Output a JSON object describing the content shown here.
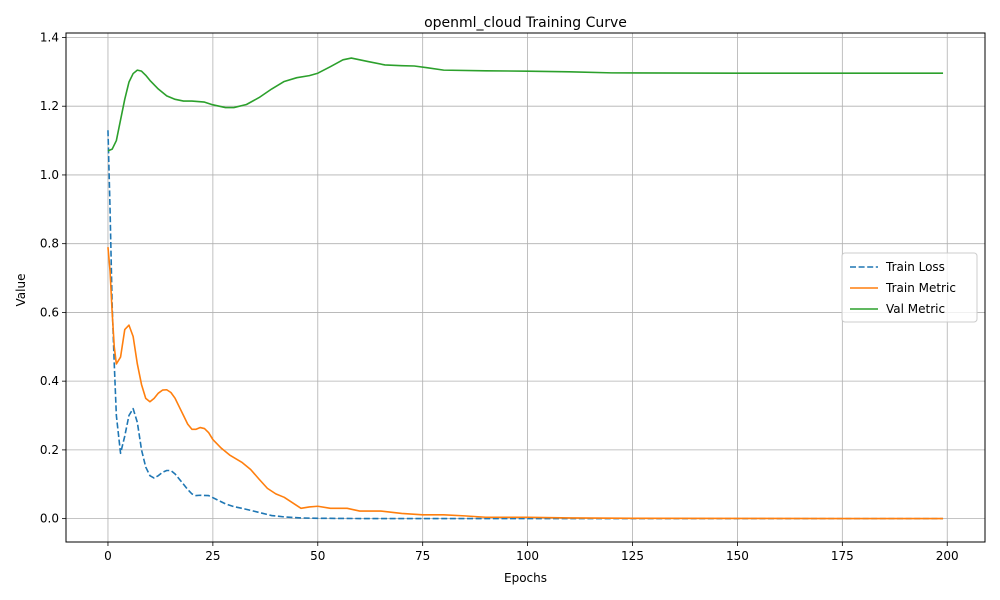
{
  "chart_data": {
    "type": "line",
    "title": "openml_cloud Training Curve",
    "xlabel": "Epochs",
    "ylabel": "Value",
    "xlim": [
      -10,
      209
    ],
    "ylim": [
      -0.068,
      1.413
    ],
    "xticks": [
      0,
      25,
      50,
      75,
      100,
      125,
      150,
      175,
      200
    ],
    "yticks": [
      0.0,
      0.2,
      0.4,
      0.6,
      0.8,
      1.0,
      1.2,
      1.4
    ],
    "xtick_labels": [
      "0",
      "25",
      "50",
      "75",
      "100",
      "125",
      "150",
      "175",
      "200"
    ],
    "ytick_labels": [
      "0.0",
      "0.2",
      "0.4",
      "0.6",
      "0.8",
      "1.0",
      "1.2",
      "1.4"
    ],
    "grid": true,
    "legend_position": "center-right",
    "series": [
      {
        "name": "Train Loss",
        "color": "#1f77b4",
        "dash": "dashed",
        "points": [
          [
            0,
            1.13
          ],
          [
            0.5,
            0.9
          ],
          [
            1,
            0.62
          ],
          [
            1.5,
            0.45
          ],
          [
            2,
            0.3
          ],
          [
            3,
            0.19
          ],
          [
            4,
            0.24
          ],
          [
            5,
            0.3
          ],
          [
            6,
            0.32
          ],
          [
            7,
            0.28
          ],
          [
            8,
            0.2
          ],
          [
            9,
            0.15
          ],
          [
            10,
            0.125
          ],
          [
            11,
            0.118
          ],
          [
            12,
            0.125
          ],
          [
            13,
            0.135
          ],
          [
            14,
            0.14
          ],
          [
            15,
            0.14
          ],
          [
            16,
            0.13
          ],
          [
            17,
            0.115
          ],
          [
            18,
            0.1
          ],
          [
            19,
            0.085
          ],
          [
            20,
            0.072
          ],
          [
            21,
            0.067
          ],
          [
            22,
            0.068
          ],
          [
            24,
            0.067
          ],
          [
            26,
            0.055
          ],
          [
            28,
            0.043
          ],
          [
            30,
            0.035
          ],
          [
            33,
            0.027
          ],
          [
            36,
            0.018
          ],
          [
            39,
            0.009
          ],
          [
            42,
            0.005
          ],
          [
            46,
            0.002
          ],
          [
            50,
            0.001
          ],
          [
            60,
            0.0003
          ],
          [
            80,
            0.0001
          ],
          [
            100,
            0.0
          ],
          [
            150,
            0.0
          ],
          [
            199,
            0.0
          ]
        ]
      },
      {
        "name": "Train Metric",
        "color": "#ff7f0e",
        "dash": "solid",
        "points": [
          [
            0,
            0.79
          ],
          [
            0.5,
            0.72
          ],
          [
            1,
            0.6
          ],
          [
            1.5,
            0.5
          ],
          [
            2,
            0.45
          ],
          [
            3,
            0.47
          ],
          [
            4,
            0.55
          ],
          [
            5,
            0.563
          ],
          [
            6,
            0.53
          ],
          [
            7,
            0.45
          ],
          [
            8,
            0.39
          ],
          [
            9,
            0.35
          ],
          [
            10,
            0.34
          ],
          [
            11,
            0.35
          ],
          [
            12,
            0.365
          ],
          [
            13,
            0.374
          ],
          [
            14,
            0.375
          ],
          [
            15,
            0.367
          ],
          [
            16,
            0.35
          ],
          [
            17,
            0.325
          ],
          [
            18,
            0.3
          ],
          [
            19,
            0.275
          ],
          [
            20,
            0.26
          ],
          [
            21,
            0.26
          ],
          [
            22,
            0.265
          ],
          [
            23,
            0.262
          ],
          [
            24,
            0.25
          ],
          [
            25,
            0.23
          ],
          [
            27,
            0.205
          ],
          [
            29,
            0.185
          ],
          [
            32,
            0.163
          ],
          [
            34,
            0.143
          ],
          [
            36,
            0.115
          ],
          [
            38,
            0.088
          ],
          [
            40,
            0.072
          ],
          [
            42,
            0.062
          ],
          [
            44,
            0.046
          ],
          [
            46,
            0.03
          ],
          [
            48,
            0.034
          ],
          [
            50,
            0.036
          ],
          [
            53,
            0.03
          ],
          [
            57,
            0.03
          ],
          [
            60,
            0.022
          ],
          [
            65,
            0.022
          ],
          [
            70,
            0.015
          ],
          [
            75,
            0.011
          ],
          [
            80,
            0.011
          ],
          [
            85,
            0.008
          ],
          [
            90,
            0.004
          ],
          [
            100,
            0.004
          ],
          [
            110,
            0.002
          ],
          [
            125,
            0.001
          ],
          [
            150,
            0.0005
          ],
          [
            175,
            0.0003
          ],
          [
            199,
            0.0003
          ]
        ]
      },
      {
        "name": "Val Metric",
        "color": "#2ca02c",
        "dash": "solid",
        "points": [
          [
            0,
            1.07
          ],
          [
            1,
            1.075
          ],
          [
            2,
            1.1
          ],
          [
            3,
            1.16
          ],
          [
            4,
            1.22
          ],
          [
            5,
            1.27
          ],
          [
            6,
            1.295
          ],
          [
            7,
            1.305
          ],
          [
            8,
            1.302
          ],
          [
            9,
            1.29
          ],
          [
            10,
            1.275
          ],
          [
            12,
            1.25
          ],
          [
            14,
            1.23
          ],
          [
            16,
            1.22
          ],
          [
            18,
            1.215
          ],
          [
            20,
            1.215
          ],
          [
            23,
            1.212
          ],
          [
            25,
            1.204
          ],
          [
            28,
            1.196
          ],
          [
            30,
            1.196
          ],
          [
            33,
            1.205
          ],
          [
            36,
            1.225
          ],
          [
            39,
            1.25
          ],
          [
            42,
            1.272
          ],
          [
            45,
            1.283
          ],
          [
            48,
            1.289
          ],
          [
            50,
            1.296
          ],
          [
            53,
            1.315
          ],
          [
            56,
            1.335
          ],
          [
            58,
            1.34
          ],
          [
            62,
            1.33
          ],
          [
            66,
            1.32
          ],
          [
            70,
            1.318
          ],
          [
            73,
            1.317
          ],
          [
            76,
            1.312
          ],
          [
            80,
            1.305
          ],
          [
            90,
            1.303
          ],
          [
            100,
            1.302
          ],
          [
            110,
            1.3
          ],
          [
            120,
            1.297
          ],
          [
            150,
            1.296
          ],
          [
            175,
            1.296
          ],
          [
            199,
            1.296
          ]
        ]
      }
    ]
  }
}
